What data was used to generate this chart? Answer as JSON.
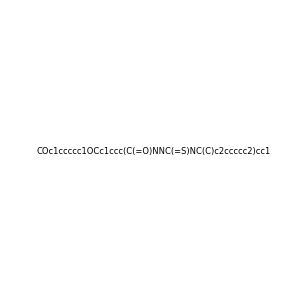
{
  "smiles": "COc1ccccc1OCc1ccc(C(=O)NNC(=S)NC(C)c2ccccc2)cc1",
  "title": "",
  "bg_color": "#e8e8e8",
  "fig_width": 3.0,
  "fig_height": 3.0,
  "dpi": 100
}
